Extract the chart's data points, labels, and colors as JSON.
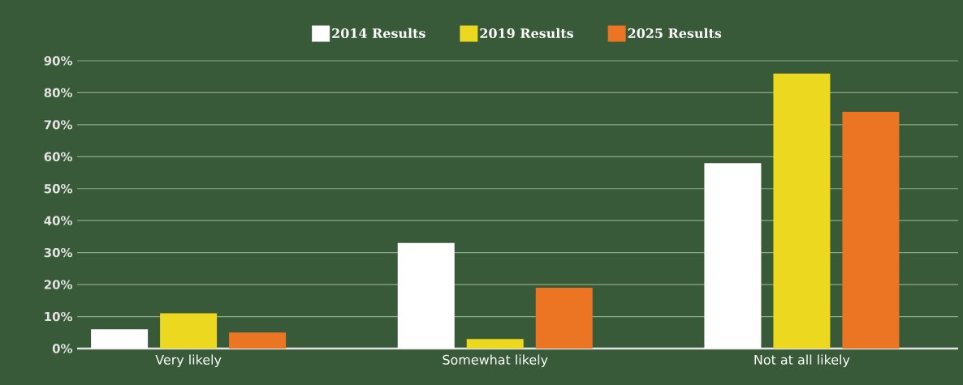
{
  "chart_data": {
    "type": "bar",
    "categories": [
      "Very likely",
      "Somewhat likely",
      "Not at all likely"
    ],
    "series": [
      {
        "name": "2014 Results",
        "color": "#ffffff",
        "values": [
          6,
          33,
          58
        ]
      },
      {
        "name": "2019 Results",
        "color": "#ecd81e",
        "values": [
          11,
          3,
          86
        ]
      },
      {
        "name": "2025 Results",
        "color": "#ec7524",
        "values": [
          5,
          19,
          74
        ]
      }
    ],
    "ylim": [
      0,
      90
    ],
    "yticks": [
      {
        "value": 0,
        "label": "0%"
      },
      {
        "value": 10,
        "label": "10%"
      },
      {
        "value": 20,
        "label": "20%"
      },
      {
        "value": 30,
        "label": "30%"
      },
      {
        "value": 40,
        "label": "40%"
      },
      {
        "value": 50,
        "label": "50%"
      },
      {
        "value": 60,
        "label": "60%"
      },
      {
        "value": 70,
        "label": "70%"
      },
      {
        "value": 80,
        "label": "80%"
      },
      {
        "value": 90,
        "label": "90%"
      }
    ],
    "grid": "y",
    "legend": "top"
  }
}
